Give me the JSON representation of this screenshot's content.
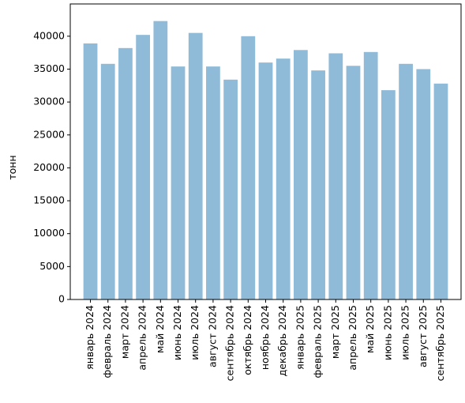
{
  "chart_data": {
    "type": "bar",
    "y_label": "тонн",
    "categories": [
      "январь 2024",
      "февраль 2024",
      "март 2024",
      "апрель 2024",
      "май 2024",
      "июнь 2024",
      "июль 2024",
      "август 2024",
      "сентябрь 2024",
      "октябрь 2024",
      "ноябрь 2024",
      "декабрь 2024",
      "январь 2025",
      "февраль 2025",
      "март 2025",
      "апрель 2025",
      "май 2025",
      "июнь 2025",
      "июль 2025",
      "август 2025",
      "сентябрь 2025"
    ],
    "values": [
      38900,
      35800,
      38200,
      40200,
      42300,
      35400,
      40500,
      35400,
      33400,
      40000,
      36000,
      36600,
      37900,
      34800,
      37400,
      35500,
      37600,
      31800,
      35800,
      35000,
      32800
    ],
    "color": "#8fbbd9",
    "ylim": [
      0,
      44900
    ],
    "yticks": [
      0,
      5000,
      10000,
      15000,
      20000,
      25000,
      30000,
      35000,
      40000
    ]
  }
}
